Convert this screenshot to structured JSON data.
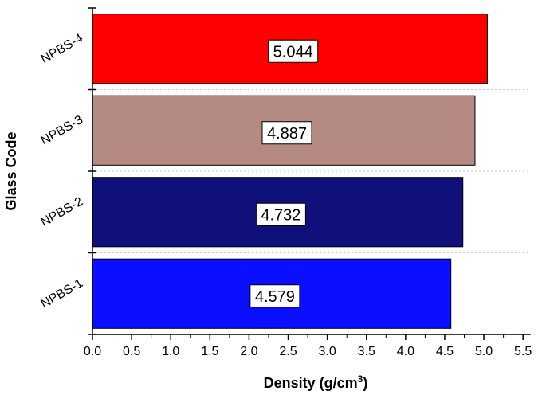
{
  "chart_data": {
    "type": "bar",
    "orientation": "horizontal",
    "categories": [
      "NPBS-1",
      "NPBS-2",
      "NPBS-3",
      "NPBS-4"
    ],
    "values": [
      4.579,
      4.732,
      4.887,
      5.044
    ],
    "value_labels": [
      "4.579",
      "4.732",
      "4.887",
      "5.044"
    ],
    "colors": [
      "#0a10ff",
      "#10107a",
      "#b48a82",
      "#ff0000"
    ],
    "xlabel_main": "Density (g/cm",
    "xlabel_sup": "3",
    "xlabel_end": ")",
    "ylabel": "Glass Code",
    "xlim": [
      0,
      5.6
    ],
    "xticks": [
      0.0,
      0.5,
      1.0,
      1.5,
      2.0,
      2.5,
      3.0,
      3.5,
      4.0,
      4.5,
      5.0,
      5.5
    ],
    "xtick_labels": [
      "0.0",
      "0.5",
      "1.0",
      "1.5",
      "2.0",
      "2.5",
      "3.0",
      "3.5",
      "4.0",
      "4.5",
      "5.0",
      "5.5"
    ],
    "grid": "horizontal-dotted",
    "legend": "none"
  }
}
